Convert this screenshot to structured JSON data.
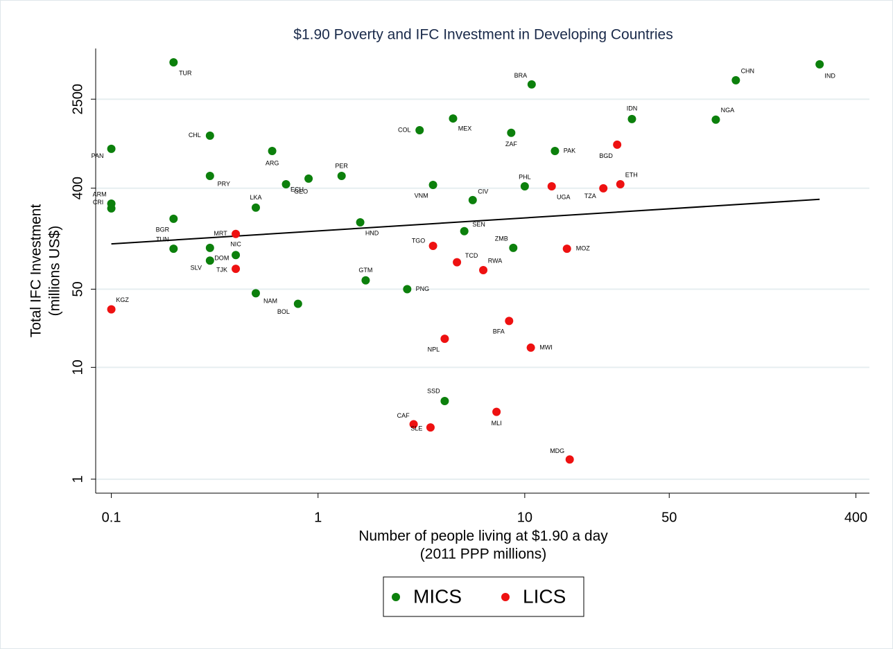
{
  "chart_data": {
    "type": "scatter",
    "title": "$1.90 Poverty and IFC Investment in Developing Countries",
    "xlabel": [
      "Number of people living at $1.90 a day",
      "(2011 PPP millions)"
    ],
    "ylabel": [
      "Total IFC Investment",
      "(millions US$)"
    ],
    "xscale": "log",
    "yscale": "log",
    "xlim": [
      0.084,
      465
    ],
    "ylim": [
      0.75,
      7100
    ],
    "xticks": [
      0.1,
      1,
      10,
      50,
      400
    ],
    "yticks": [
      1,
      10,
      50,
      400,
      2500
    ],
    "grid": true,
    "series": [
      {
        "name": "MICS",
        "color": "#0c800c",
        "labels": [
          "TUR",
          "IND",
          "CHN",
          "BRA",
          "IDN",
          "NGA",
          "MEX",
          "COL",
          "ZAF",
          "CHL",
          "PAN",
          "ARG",
          "PAK",
          "PRY",
          "PER",
          "GEO",
          "ECU",
          "VNM",
          "PHL",
          "CIV",
          "ARM",
          "CRI",
          "LKA",
          "BGR",
          "HND",
          "SEN",
          "TUN",
          "ZMB",
          "DOM",
          "NIC",
          "SLV",
          "GTM",
          "PNG",
          "NAM",
          "BOL",
          "SSD"
        ],
        "x": [
          0.2,
          267,
          105,
          10.8,
          33,
          84,
          4.5,
          3.1,
          8.6,
          0.3,
          0.1,
          0.6,
          14,
          0.3,
          1.3,
          0.9,
          0.7,
          3.6,
          10,
          5.6,
          0.1,
          0.1,
          0.5,
          0.2,
          1.6,
          5.1,
          0.2,
          8.8,
          0.3,
          0.4,
          0.3,
          1.7,
          2.7,
          0.5,
          0.8,
          4.1
        ],
        "values": [
          5340,
          5120,
          3690,
          3390,
          1660,
          1640,
          1680,
          1320,
          1250,
          1180,
          900,
          860,
          860,
          515,
          515,
          487,
          434,
          428,
          416,
          313,
          291,
          264,
          268,
          213,
          198,
          165,
          115,
          117,
          117,
          101,
          90,
          60,
          50,
          46,
          37,
          5.0
        ]
      },
      {
        "name": "LICS",
        "color": "#ee1111",
        "labels": [
          "BGD",
          "ETH",
          "UGA",
          "TZA",
          "MRT",
          "TGO",
          "MOZ",
          "TCD",
          "TJK",
          "RWA",
          "KGZ",
          "BFA",
          "NPL",
          "MWI",
          "MLI",
          "CAF",
          "SLE",
          "MDG"
        ],
        "x": [
          28,
          29,
          13.5,
          24,
          0.4,
          3.6,
          16,
          4.7,
          0.4,
          6.3,
          0.1,
          8.4,
          4.1,
          10.7,
          7.3,
          2.9,
          3.5,
          16.5
        ],
        "values": [
          980,
          434,
          416,
          399,
          156,
          122,
          115,
          87,
          76,
          74,
          33,
          26,
          18,
          15,
          4.0,
          3.1,
          2.9,
          1.5
        ]
      }
    ],
    "fit_line": {
      "x": [
        0.1,
        267
      ],
      "values": [
        127,
        318
      ],
      "color": "#000000"
    }
  }
}
